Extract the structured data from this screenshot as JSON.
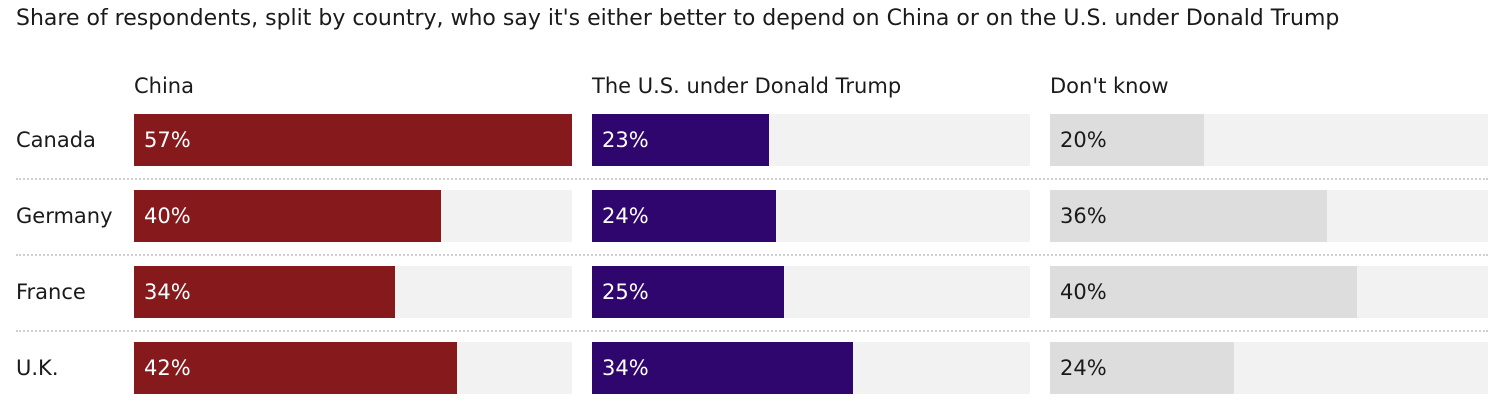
{
  "chart_data": {
    "type": "bar",
    "title": "Share of respondents, split by country, who say it's either better to depend on China or on the U.S. under Donald Trump",
    "categories": [
      "Canada",
      "Germany",
      "France",
      "U.K."
    ],
    "series": [
      {
        "name": "China",
        "values": [
          57,
          40,
          34,
          42
        ],
        "labels": [
          "57%",
          "40%",
          "34%",
          "42%"
        ],
        "color": "#85191c",
        "text_color": "#ffffff"
      },
      {
        "name": "The U.S. under Donald Trump",
        "values": [
          23,
          24,
          25,
          34
        ],
        "labels": [
          "23%",
          "24%",
          "25%",
          "34%"
        ],
        "color": "#2f066d",
        "text_color": "#ffffff"
      },
      {
        "name": "Don't know",
        "values": [
          20,
          36,
          40,
          24
        ],
        "labels": [
          "20%",
          "36%",
          "40%",
          "24%"
        ],
        "color": "#dddddd",
        "text_color": "#1a1a1a"
      }
    ],
    "xlim": [
      0,
      57
    ],
    "track_color": "#f2f2f2"
  }
}
